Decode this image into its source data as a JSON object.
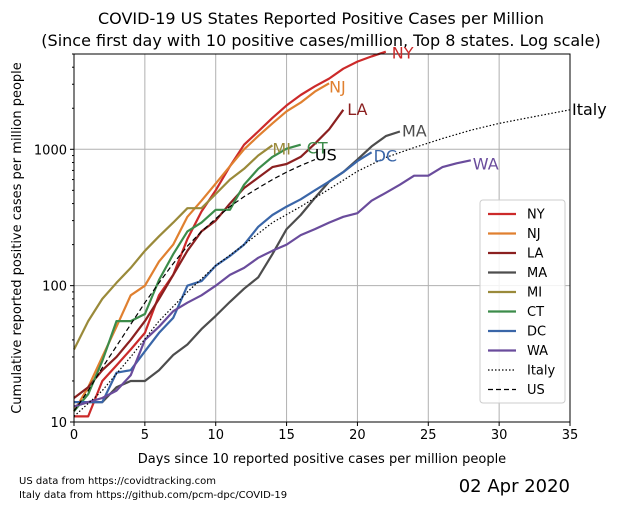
{
  "chart_data": {
    "type": "line",
    "title": "COVID-19 US States Reported Positive Cases per Million",
    "subtitle": "(Since first day with 10 positive cases/million, Top 8 states. Log scale)",
    "xlabel": "Days since 10 reported positive cases per million people",
    "ylabel": "Cumulative reported positive cases per million people",
    "xlim": [
      0,
      35
    ],
    "ylim": [
      10,
      5000
    ],
    "yscale": "log",
    "grid": true,
    "legend_position": "lower-right",
    "x_ticks": [
      0,
      5,
      10,
      15,
      20,
      25,
      30,
      35
    ],
    "y_ticks": [
      10,
      100,
      1000
    ],
    "series": [
      {
        "name": "NY",
        "color": "#cc2a2a",
        "style": "solid",
        "end_label": "NY",
        "points": [
          [
            0,
            11
          ],
          [
            1,
            11
          ],
          [
            2,
            20
          ],
          [
            3,
            26
          ],
          [
            4,
            34
          ],
          [
            5,
            45
          ],
          [
            6,
            85
          ],
          [
            7,
            120
          ],
          [
            8,
            220
          ],
          [
            9,
            350
          ],
          [
            10,
            500
          ],
          [
            11,
            750
          ],
          [
            12,
            1080
          ],
          [
            13,
            1350
          ],
          [
            14,
            1700
          ],
          [
            15,
            2100
          ],
          [
            16,
            2500
          ],
          [
            17,
            2900
          ],
          [
            18,
            3300
          ],
          [
            19,
            3900
          ],
          [
            20,
            4400
          ],
          [
            21,
            4800
          ],
          [
            22,
            5200
          ]
        ]
      },
      {
        "name": "NJ",
        "color": "#e08030",
        "style": "solid",
        "end_label": "NJ",
        "points": [
          [
            0,
            12
          ],
          [
            1,
            18
          ],
          [
            2,
            30
          ],
          [
            3,
            50
          ],
          [
            4,
            85
          ],
          [
            5,
            100
          ],
          [
            6,
            150
          ],
          [
            7,
            200
          ],
          [
            8,
            320
          ],
          [
            9,
            420
          ],
          [
            10,
            560
          ],
          [
            11,
            750
          ],
          [
            12,
            1000
          ],
          [
            13,
            1250
          ],
          [
            14,
            1550
          ],
          [
            15,
            1900
          ],
          [
            16,
            2200
          ],
          [
            17,
            2650
          ],
          [
            18,
            3050
          ]
        ]
      },
      {
        "name": "LA",
        "color": "#8b2020",
        "style": "solid",
        "end_label": "LA",
        "points": [
          [
            0,
            15
          ],
          [
            1,
            18
          ],
          [
            2,
            24
          ],
          [
            3,
            30
          ],
          [
            4,
            40
          ],
          [
            5,
            55
          ],
          [
            6,
            80
          ],
          [
            7,
            120
          ],
          [
            8,
            180
          ],
          [
            9,
            250
          ],
          [
            10,
            300
          ],
          [
            11,
            400
          ],
          [
            12,
            520
          ],
          [
            13,
            620
          ],
          [
            14,
            740
          ],
          [
            15,
            780
          ],
          [
            16,
            880
          ],
          [
            17,
            1100
          ],
          [
            18,
            1400
          ],
          [
            19,
            1950
          ]
        ]
      },
      {
        "name": "MA",
        "color": "#4d4d4d",
        "style": "solid",
        "end_label": "MA",
        "points": [
          [
            0,
            13
          ],
          [
            1,
            14
          ],
          [
            2,
            14
          ],
          [
            3,
            18
          ],
          [
            4,
            20
          ],
          [
            5,
            20
          ],
          [
            6,
            24
          ],
          [
            7,
            31
          ],
          [
            8,
            37
          ],
          [
            9,
            48
          ],
          [
            10,
            60
          ],
          [
            11,
            76
          ],
          [
            12,
            95
          ],
          [
            13,
            115
          ],
          [
            14,
            170
          ],
          [
            15,
            260
          ],
          [
            16,
            330
          ],
          [
            17,
            440
          ],
          [
            18,
            580
          ],
          [
            19,
            680
          ],
          [
            20,
            840
          ],
          [
            21,
            1050
          ],
          [
            22,
            1250
          ],
          [
            23,
            1350
          ]
        ]
      },
      {
        "name": "MI",
        "color": "#9a8a3a",
        "style": "solid",
        "end_label": "MI",
        "points": [
          [
            0,
            34
          ],
          [
            1,
            55
          ],
          [
            2,
            80
          ],
          [
            3,
            105
          ],
          [
            4,
            135
          ],
          [
            5,
            180
          ],
          [
            6,
            230
          ],
          [
            7,
            290
          ],
          [
            8,
            370
          ],
          [
            9,
            370
          ],
          [
            10,
            470
          ],
          [
            11,
            600
          ],
          [
            12,
            720
          ],
          [
            13,
            900
          ],
          [
            14,
            1070
          ]
        ]
      },
      {
        "name": "CT",
        "color": "#3c8c4a",
        "style": "solid",
        "end_label": "CT",
        "points": [
          [
            0,
            12
          ],
          [
            1,
            16
          ],
          [
            2,
            28
          ],
          [
            3,
            55
          ],
          [
            4,
            55
          ],
          [
            5,
            62
          ],
          [
            6,
            110
          ],
          [
            7,
            170
          ],
          [
            8,
            250
          ],
          [
            9,
            290
          ],
          [
            10,
            360
          ],
          [
            11,
            360
          ],
          [
            12,
            550
          ],
          [
            13,
            720
          ],
          [
            14,
            880
          ],
          [
            15,
            1010
          ],
          [
            16,
            1080
          ]
        ]
      },
      {
        "name": "DC",
        "color": "#3a66a8",
        "style": "solid",
        "end_label": "DC",
        "points": [
          [
            0,
            14
          ],
          [
            1,
            14
          ],
          [
            2,
            14
          ],
          [
            3,
            23
          ],
          [
            4,
            24
          ],
          [
            5,
            33
          ],
          [
            6,
            45
          ],
          [
            7,
            58
          ],
          [
            8,
            100
          ],
          [
            9,
            108
          ],
          [
            10,
            140
          ],
          [
            11,
            165
          ],
          [
            12,
            200
          ],
          [
            13,
            270
          ],
          [
            14,
            330
          ],
          [
            15,
            380
          ],
          [
            16,
            430
          ],
          [
            17,
            500
          ],
          [
            18,
            580
          ],
          [
            19,
            680
          ],
          [
            20,
            820
          ],
          [
            21,
            950
          ]
        ]
      },
      {
        "name": "WA",
        "color": "#6a4c9c",
        "style": "solid",
        "end_label": "WA",
        "points": [
          [
            0,
            13
          ],
          [
            1,
            14
          ],
          [
            2,
            15
          ],
          [
            3,
            17
          ],
          [
            4,
            22
          ],
          [
            5,
            40
          ],
          [
            6,
            50
          ],
          [
            7,
            65
          ],
          [
            8,
            75
          ],
          [
            9,
            85
          ],
          [
            10,
            100
          ],
          [
            11,
            120
          ],
          [
            12,
            135
          ],
          [
            13,
            160
          ],
          [
            14,
            180
          ],
          [
            15,
            200
          ],
          [
            16,
            235
          ],
          [
            17,
            260
          ],
          [
            18,
            290
          ],
          [
            19,
            320
          ],
          [
            20,
            340
          ],
          [
            21,
            420
          ],
          [
            22,
            480
          ],
          [
            23,
            550
          ],
          [
            24,
            640
          ],
          [
            25,
            640
          ],
          [
            26,
            740
          ],
          [
            27,
            790
          ],
          [
            28,
            830
          ]
        ]
      },
      {
        "name": "Italy",
        "color": "#000000",
        "style": "dotted",
        "end_label": "Italy",
        "points": [
          [
            0,
            11
          ],
          [
            2,
            17
          ],
          [
            4,
            30
          ],
          [
            6,
            55
          ],
          [
            8,
            90
          ],
          [
            10,
            140
          ],
          [
            12,
            200
          ],
          [
            14,
            290
          ],
          [
            16,
            380
          ],
          [
            18,
            510
          ],
          [
            20,
            690
          ],
          [
            22,
            870
          ],
          [
            24,
            1030
          ],
          [
            26,
            1200
          ],
          [
            28,
            1380
          ],
          [
            30,
            1550
          ],
          [
            32,
            1700
          ],
          [
            33,
            1780
          ],
          [
            35,
            1950
          ]
        ]
      },
      {
        "name": "US",
        "color": "#000000",
        "style": "dashed",
        "end_label": "US",
        "points": [
          [
            0,
            12
          ],
          [
            1,
            17
          ],
          [
            2,
            25
          ],
          [
            3,
            36
          ],
          [
            4,
            52
          ],
          [
            5,
            75
          ],
          [
            6,
            105
          ],
          [
            7,
            145
          ],
          [
            8,
            195
          ],
          [
            9,
            250
          ],
          [
            10,
            310
          ],
          [
            11,
            380
          ],
          [
            12,
            450
          ],
          [
            13,
            520
          ],
          [
            14,
            600
          ],
          [
            15,
            680
          ],
          [
            16,
            760
          ],
          [
            17,
            840
          ]
        ]
      }
    ]
  },
  "footer": {
    "source_us": "US data from https://covidtracking.com",
    "source_italy": "Italy data from https://github.com/pcm-dpc/COVID-19",
    "date": "02 Apr 2020"
  }
}
